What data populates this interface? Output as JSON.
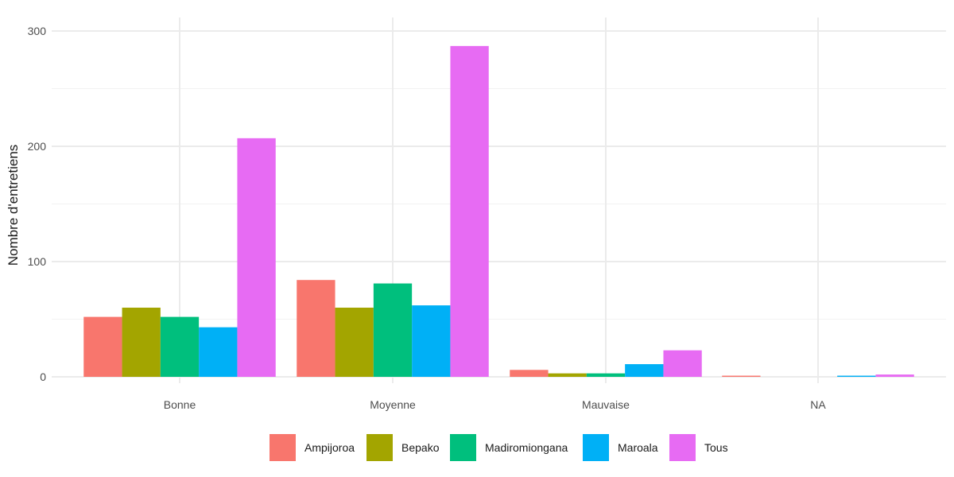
{
  "chart_data": {
    "type": "bar",
    "categories": [
      "Bonne",
      "Moyenne",
      "Mauvaise",
      "NA"
    ],
    "series": [
      {
        "name": "Ampijoroa",
        "color": "#F8766D",
        "values": [
          52,
          84,
          6,
          1
        ]
      },
      {
        "name": "Bepako",
        "color": "#A3A500",
        "values": [
          60,
          60,
          3,
          0
        ]
      },
      {
        "name": "Madiromiongana",
        "color": "#00BF7D",
        "values": [
          52,
          81,
          3,
          0
        ]
      },
      {
        "name": "Maroala",
        "color": "#00B0F6",
        "values": [
          43,
          62,
          11,
          1
        ]
      },
      {
        "name": "Tous",
        "color": "#E76BF3",
        "values": [
          207,
          287,
          23,
          2
        ]
      }
    ],
    "xlabel": "",
    "ylabel": "Nombre d'entretiens",
    "ylim": [
      0,
      300
    ],
    "yticks": [
      "0",
      "100",
      "200",
      "300"
    ],
    "grid": true,
    "legend_position": "bottom"
  }
}
